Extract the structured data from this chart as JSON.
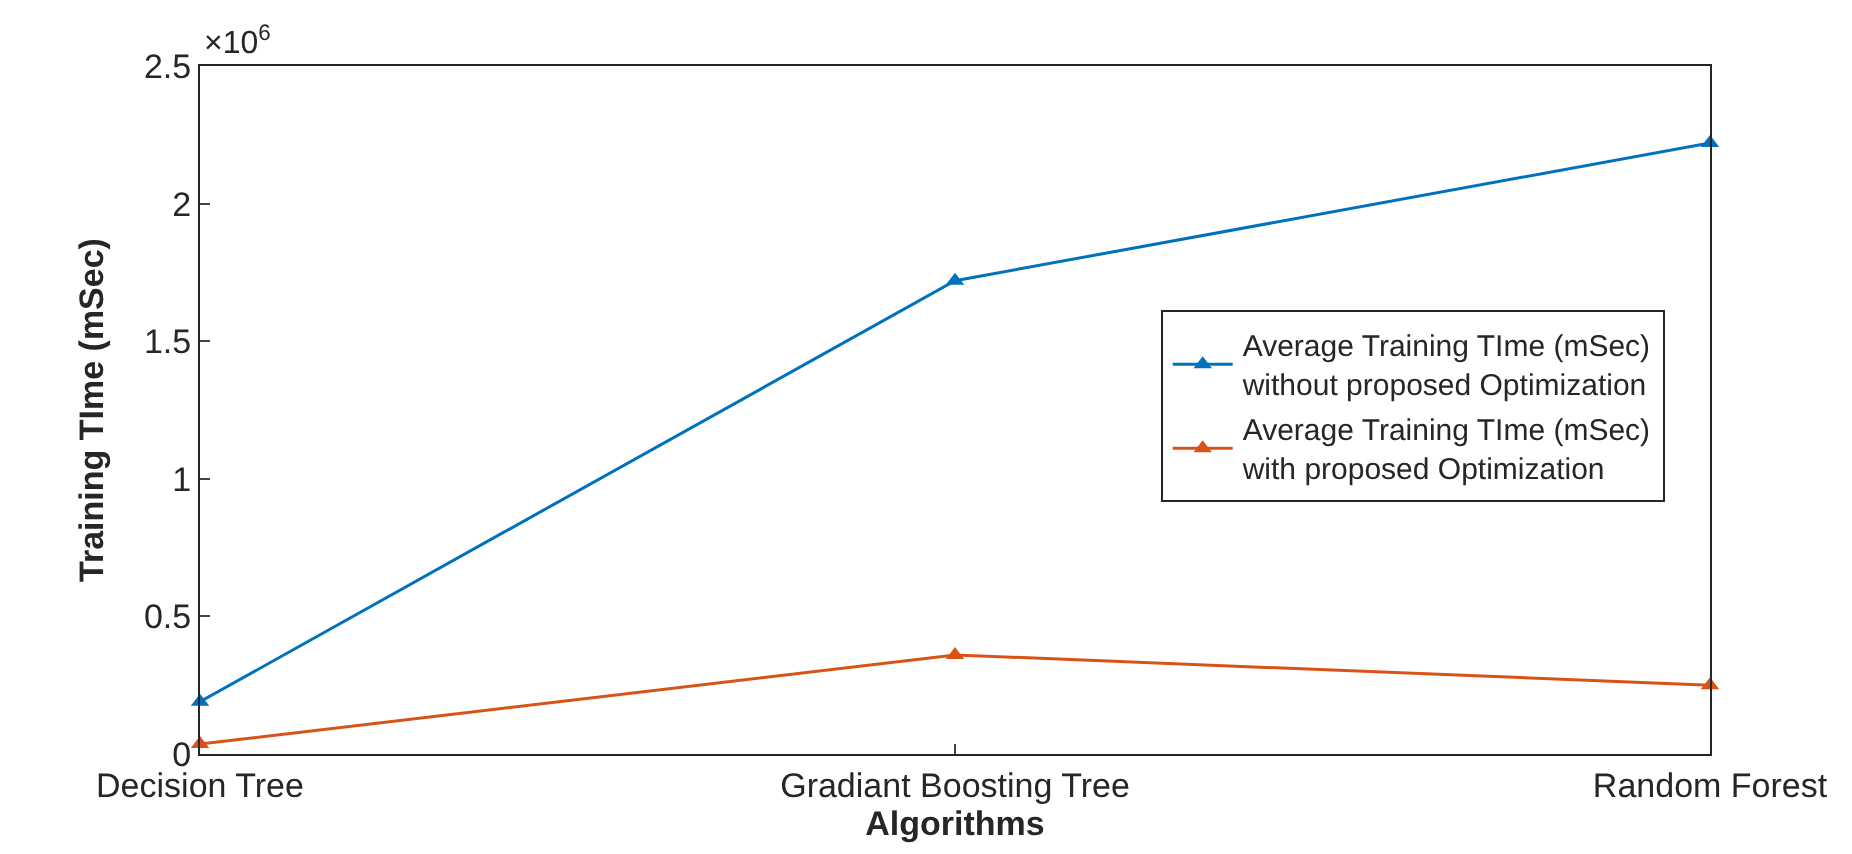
{
  "chart_data": {
    "type": "line",
    "xlabel": "Algorithms",
    "ylabel": "Training TIme (mSec)",
    "categories": [
      "Decision Tree",
      "Gradiant Boosting Tree",
      "Random Forest"
    ],
    "series": [
      {
        "name": "Average Training TIme (mSec)\nwithout proposed Optimization",
        "color": "#0072bd",
        "values": [
          0.19,
          1.72,
          2.22
        ]
      },
      {
        "name": "Average Training TIme (mSec)\nwith proposed Optimization",
        "color": "#d95319",
        "values": [
          0.036,
          0.36,
          0.25
        ]
      }
    ],
    "ylim": [
      0,
      2.5
    ],
    "yticks": [
      0,
      0.5,
      1,
      1.5,
      2,
      2.5
    ],
    "annotations": [
      "×10$^{6}$"
    ],
    "legend": "right",
    "marker": "triangle",
    "line_style": "solid"
  }
}
